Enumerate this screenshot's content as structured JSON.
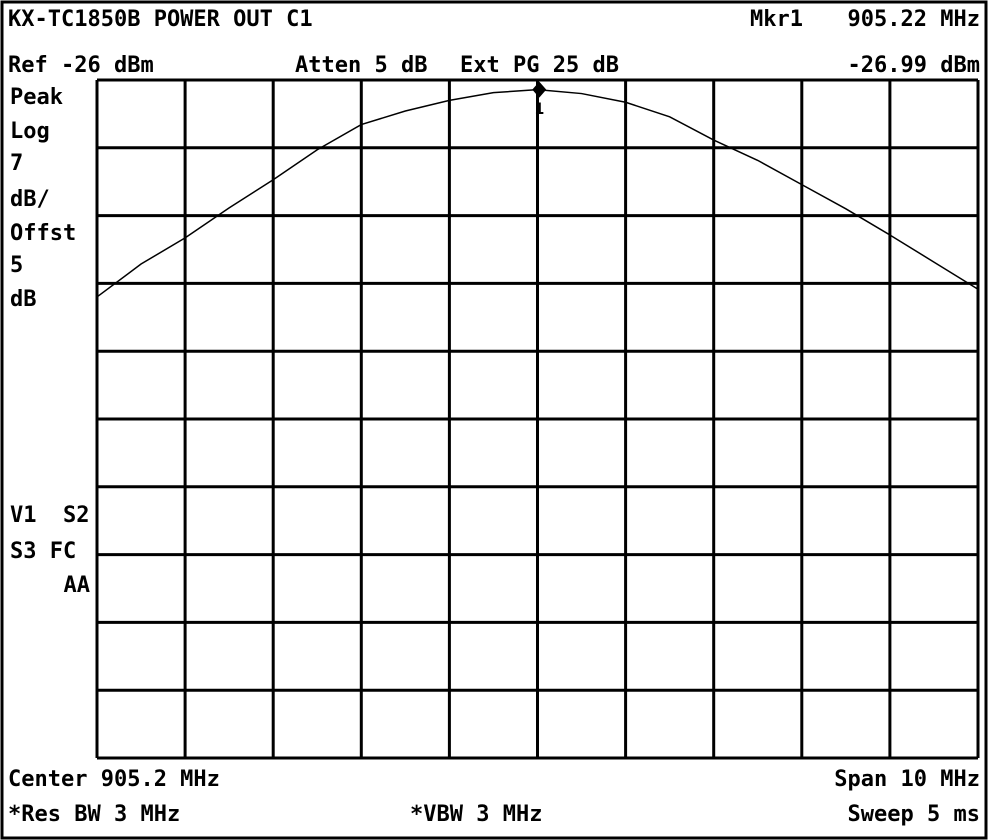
{
  "chart_data": {
    "type": "line",
    "title": "KX-TC1850B POWER OUT C1",
    "header": [
      "Ref -26 dBm",
      "Atten 5 dB",
      "Ext PG 25 dB"
    ],
    "side_labels": [
      "Peak",
      "Log",
      "7",
      "dB/",
      "Offst",
      "5",
      "dB",
      "V1  S2",
      "S3 FC",
      "AA"
    ],
    "footer": [
      "Center 905.2 MHz",
      "Span 10 MHz",
      "*Res BW 3 MHz",
      "*VBW 3 MHz",
      "Sweep 5 ms"
    ],
    "marker": {
      "name": "Mkr1",
      "tag": "1",
      "x": 905.22,
      "y": -26.99,
      "x_label": "905.22 MHz",
      "y_label": "-26.99 dBm"
    },
    "x": [
      900.2,
      900.7,
      901.2,
      901.7,
      902.2,
      902.7,
      903.2,
      903.7,
      904.2,
      904.7,
      905.2,
      905.7,
      906.2,
      906.7,
      907.2,
      907.7,
      908.2,
      908.7,
      909.2,
      909.7,
      910.2
    ],
    "values": [
      -48.4,
      -45.0,
      -42.3,
      -39.2,
      -36.3,
      -33.2,
      -30.6,
      -29.2,
      -28.1,
      -27.3,
      -27.0,
      -27.4,
      -28.3,
      -29.8,
      -32.2,
      -34.3,
      -36.8,
      -39.3,
      -42.0,
      -44.8,
      -47.6
    ],
    "color": "#000000",
    "xlim": [
      900.2,
      910.2
    ],
    "ylim": [
      -96,
      -26
    ],
    "grid": true
  }
}
